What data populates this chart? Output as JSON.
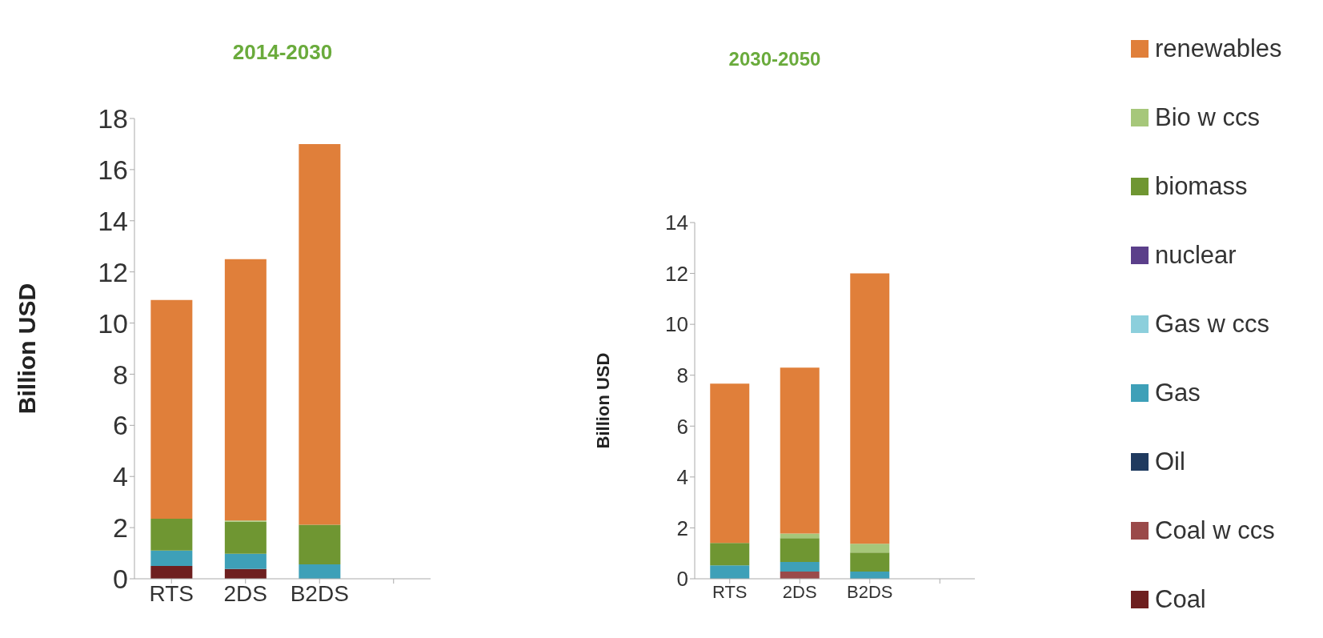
{
  "chart_data": [
    {
      "type": "bar",
      "title": "2014-2030",
      "ylabel": "Billion USD",
      "stacked": true,
      "categories": [
        "RTS",
        "2DS",
        "B2DS",
        null
      ],
      "ylim": [
        0,
        18
      ],
      "yticks": [
        0,
        2,
        4,
        6,
        8,
        10,
        12,
        14,
        16,
        18
      ],
      "grid": false,
      "legend": "right",
      "series": [
        {
          "name": "Coal",
          "color": "#6e1f1f",
          "values": [
            0.5,
            0.38,
            0,
            null
          ]
        },
        {
          "name": "Coal w ccs",
          "color": "#9a4a4a",
          "values": [
            0,
            0,
            0,
            null
          ]
        },
        {
          "name": "Oil",
          "color": "#1f3a5f",
          "values": [
            0,
            0,
            0,
            null
          ]
        },
        {
          "name": "Gas",
          "color": "#3ea0b8",
          "values": [
            0.6,
            0.6,
            0.56,
            null
          ]
        },
        {
          "name": "Gas w ccs",
          "color": "#8ccfdc",
          "values": [
            0,
            0,
            0,
            null
          ]
        },
        {
          "name": "nuclear",
          "color": "#5b3f8a",
          "values": [
            0,
            0,
            0,
            null
          ]
        },
        {
          "name": "biomass",
          "color": "#6f9632",
          "values": [
            1.25,
            1.25,
            1.55,
            null
          ]
        },
        {
          "name": "Bio w ccs",
          "color": "#a6c77a",
          "values": [
            0,
            0.05,
            0,
            null
          ]
        },
        {
          "name": "renewables",
          "color": "#e07f3a",
          "values": [
            8.55,
            10.22,
            14.89,
            null
          ]
        }
      ]
    },
    {
      "type": "bar",
      "title": "2030-2050",
      "ylabel": "Billion USD",
      "stacked": true,
      "categories": [
        "RTS",
        "2DS",
        "B2DS",
        null
      ],
      "ylim": [
        0,
        14
      ],
      "yticks": [
        0,
        2,
        4,
        6,
        8,
        10,
        12,
        14
      ],
      "grid": false,
      "series": [
        {
          "color": "#6e1f1f",
          "values": [
            0,
            0,
            0,
            null
          ]
        },
        {
          "color": "#9a4a4a",
          "values": [
            0,
            0.28,
            0,
            null
          ]
        },
        {
          "color": "#1f3a5f",
          "values": [
            0,
            0,
            0,
            null
          ]
        },
        {
          "color": "#3ea0b8",
          "values": [
            0.53,
            0.38,
            0.28,
            null
          ]
        },
        {
          "color": "#8ccfdc",
          "values": [
            0,
            0,
            0,
            null
          ]
        },
        {
          "color": "#5b3f8a",
          "values": [
            0,
            0,
            0,
            null
          ]
        },
        {
          "color": "#6f9632",
          "values": [
            0.88,
            0.94,
            0.75,
            null
          ]
        },
        {
          "color": "#a6c77a",
          "values": [
            0,
            0.18,
            0.35,
            null
          ]
        },
        {
          "color": "#e07f3a",
          "values": [
            6.26,
            6.52,
            10.62,
            null
          ]
        }
      ]
    }
  ]
}
